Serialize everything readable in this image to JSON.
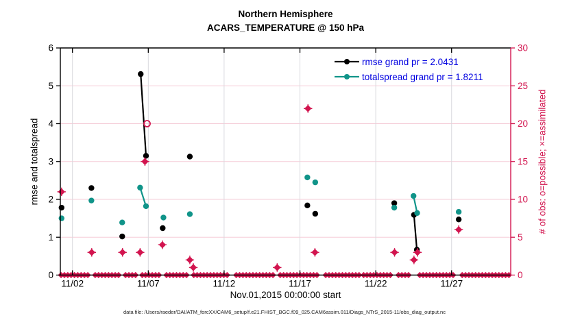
{
  "header": {
    "title_line1": "Northern Hemisphere",
    "title_line2": "ACARS_TEMPERATURE @ 150 hPa"
  },
  "footer": {
    "data_file_note": "data file: /Users/raeder/DAI/ATM_forcXX/CAM6_setup/f.e21.FHIST_BGC.f09_025.CAM6assim.011/Diags_NTrS_2015-11/obs_diag_output.nc"
  },
  "colors": {
    "crimson": "#d2154f",
    "teal": "#109489",
    "black": "#000000",
    "legend_text": "#0000e0",
    "grid_pink": "#f5ccd7",
    "grid_gray": "#d9d9de"
  },
  "chart_data": {
    "type": "line",
    "title": [
      "Northern Hemisphere",
      "ACARS_TEMPERATURE @ 150 hPa"
    ],
    "xlabel": "Nov.01,2015 00:00:00 start",
    "ylabel_left": "rmse and totalspread",
    "ylabel_right": "# of obs: o=possible; ×=assimilated",
    "xlim": [
      1.2,
      30.9
    ],
    "ylim_left": [
      0,
      6
    ],
    "ylim_right": [
      0,
      30
    ],
    "yticks_left": [
      0,
      1,
      2,
      3,
      4,
      5,
      6
    ],
    "yticks_right": [
      0,
      5,
      10,
      15,
      20,
      25,
      30
    ],
    "xticks": [
      {
        "day": 2,
        "label": "11/02"
      },
      {
        "day": 7,
        "label": "11/07"
      },
      {
        "day": 12,
        "label": "11/12"
      },
      {
        "day": 17,
        "label": "11/17"
      },
      {
        "day": 22,
        "label": "11/22"
      },
      {
        "day": 27,
        "label": "11/27"
      }
    ],
    "grid": true,
    "legend": {
      "position": "top-right-inside",
      "entries": [
        {
          "label": "rmse grand pr = 2.0431",
          "color": "#000000",
          "marker": "circle"
        },
        {
          "label": "totalspread grand pr = 1.8211",
          "color": "#109489",
          "marker": "circle"
        }
      ]
    },
    "series": [
      {
        "name": "rmse",
        "axis": "left",
        "color": "#000000",
        "marker": "circle",
        "line_width": 2.2,
        "polylines": [
          [
            [
              1.28,
              1.78
            ]
          ],
          [
            [
              3.25,
              2.3
            ]
          ],
          [
            [
              5.28,
              1.02
            ]
          ],
          [
            [
              6.5,
              5.31
            ],
            [
              6.85,
              3.15
            ]
          ],
          [
            [
              7.95,
              1.24
            ]
          ],
          [
            [
              9.74,
              3.13
            ]
          ],
          [
            [
              17.49,
              1.84
            ]
          ],
          [
            [
              18.01,
              1.62
            ]
          ],
          [
            [
              23.22,
              1.9
            ]
          ],
          [
            [
              24.52,
              1.59
            ],
            [
              24.71,
              0.67
            ]
          ],
          [
            [
              27.47,
              1.47
            ]
          ]
        ]
      },
      {
        "name": "totalspread",
        "axis": "left",
        "color": "#109489",
        "marker": "circle",
        "line_width": 2.2,
        "polylines": [
          [
            [
              1.28,
              1.5
            ]
          ],
          [
            [
              3.25,
              1.97
            ]
          ],
          [
            [
              5.28,
              1.39
            ]
          ],
          [
            [
              6.46,
              2.31
            ],
            [
              6.85,
              1.82
            ]
          ],
          [
            [
              8.0,
              1.52
            ]
          ],
          [
            [
              9.74,
              1.61
            ]
          ],
          [
            [
              17.49,
              2.58
            ]
          ],
          [
            [
              18.01,
              2.45
            ]
          ],
          [
            [
              23.22,
              1.78
            ]
          ],
          [
            [
              24.49,
              2.09
            ],
            [
              24.73,
              1.64
            ]
          ],
          [
            [
              27.47,
              1.67
            ]
          ]
        ]
      },
      {
        "name": "obs_assimilated",
        "axis": "right",
        "color": "#d2154f",
        "marker": "diamond-asterisk",
        "line_width": 0,
        "polylines": [
          [
            [
              1.28,
              11
            ]
          ],
          [
            [
              3.27,
              3
            ]
          ],
          [
            [
              5.3,
              3
            ]
          ],
          [
            [
              6.46,
              3
            ]
          ],
          [
            [
              6.78,
              15
            ]
          ],
          [
            [
              7.93,
              4
            ]
          ],
          [
            [
              9.74,
              2
            ]
          ],
          [
            [
              9.97,
              1
            ]
          ],
          [
            [
              15.5,
              1
            ]
          ],
          [
            [
              17.53,
              22
            ]
          ],
          [
            [
              17.99,
              3
            ]
          ],
          [
            [
              23.24,
              3
            ]
          ],
          [
            [
              24.52,
              2
            ]
          ],
          [
            [
              24.75,
              3
            ]
          ],
          [
            [
              27.47,
              6
            ]
          ]
        ]
      },
      {
        "name": "obs_possible",
        "axis": "right",
        "color": "#d2154f",
        "marker": "open-circle",
        "line_width": 0,
        "polylines": [
          [
            [
              6.92,
              20
            ]
          ]
        ]
      }
    ],
    "zero_marker_segments": [
      [
        1.25,
        3.1
      ],
      [
        3.5,
        5.1
      ],
      [
        5.5,
        6.3
      ],
      [
        6.6,
        7.8
      ],
      [
        8.2,
        9.6
      ],
      [
        10.0,
        12.4
      ],
      [
        12.8,
        15.3
      ],
      [
        15.7,
        18.3
      ],
      [
        18.7,
        20.9
      ],
      [
        21.2,
        23.1
      ],
      [
        23.5,
        24.3
      ],
      [
        24.9,
        27.2
      ],
      [
        27.7,
        30.8
      ]
    ],
    "zero_marker_step": 0.22
  }
}
